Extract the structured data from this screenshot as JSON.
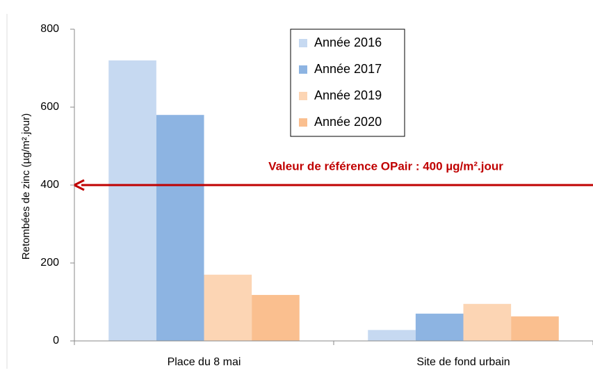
{
  "chart_data": {
    "type": "bar",
    "categories": [
      "Place du 8 mai",
      "Site de fond urbain"
    ],
    "series": [
      {
        "name": "Année 2016",
        "color": "#c6d9f1",
        "values": [
          720,
          28
        ]
      },
      {
        "name": "Année 2017",
        "color": "#8db4e2",
        "values": [
          580,
          70
        ]
      },
      {
        "name": "Année 2019",
        "color": "#fcd5b4",
        "values": [
          170,
          95
        ]
      },
      {
        "name": "Année 2020",
        "color": "#fabf8f",
        "values": [
          118,
          63
        ]
      }
    ],
    "y_label": "Retombées de zinc  (µg/m².jour)",
    "ylim": [
      0,
      800
    ],
    "yticks": [
      0,
      200,
      400,
      600,
      800
    ],
    "reference": {
      "value": 400,
      "label": "Valeur de référence  OPair : 400 µg/m².jour",
      "color": "#c00000"
    },
    "legend": "top-center"
  }
}
